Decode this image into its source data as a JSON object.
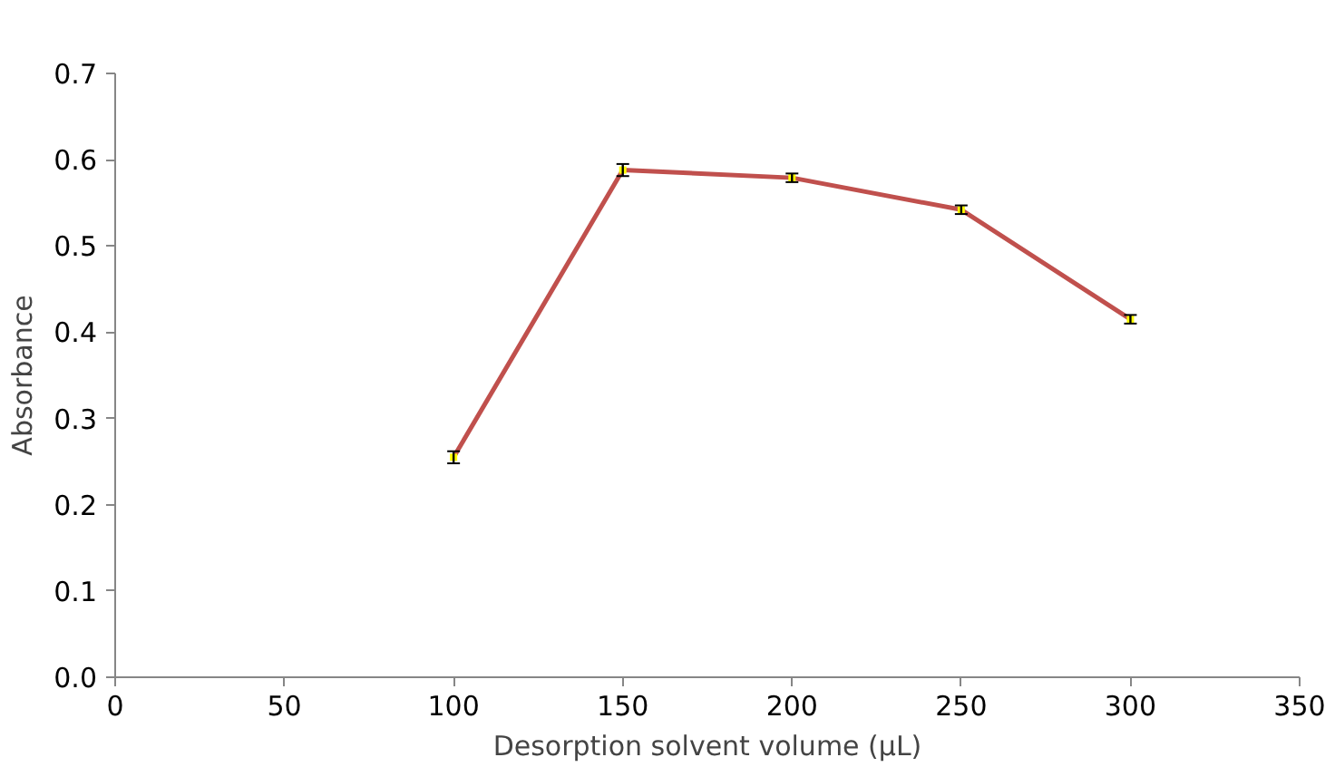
{
  "chart_data": {
    "type": "line",
    "xlabel": "Desorption solvent volume (µL)",
    "ylabel": "Absorbance",
    "x": [
      100,
      150,
      200,
      250,
      300
    ],
    "series": [
      {
        "color": "#c0504d",
        "values": [
          0.255,
          0.588,
          0.579,
          0.542,
          0.415
        ],
        "errors": [
          0.007,
          0.007,
          0.005,
          0.005,
          0.005
        ]
      }
    ],
    "xlim": [
      0,
      350
    ],
    "xticks": [
      0,
      50,
      100,
      150,
      200,
      250,
      300,
      350
    ],
    "ylim": [
      0,
      0.7
    ],
    "yticks": [
      {
        "value": 0,
        "label": "0.0"
      },
      0.1,
      0.2,
      0.3,
      0.4,
      0.5,
      0.6,
      0.7
    ],
    "grid": false,
    "marker": "square",
    "line_style": "solid"
  }
}
